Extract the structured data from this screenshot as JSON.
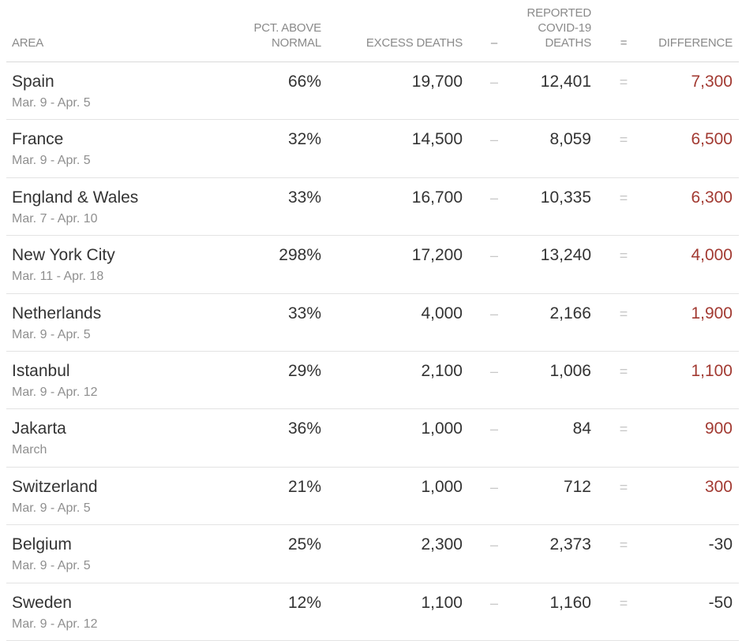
{
  "colors": {
    "positive_difference": "#a23a32",
    "negative_difference": "#333333",
    "header_text": "#8a8a8a",
    "operator": "#c8c8c8"
  },
  "chart_data": {
    "type": "table",
    "columns": [
      "AREA",
      "PCT. ABOVE\nNORMAL",
      "EXCESS DEATHS",
      "–",
      "REPORTED\nCOVID-19\nDEATHS",
      "=",
      "DIFFERENCE"
    ],
    "rows": [
      {
        "area": "Spain",
        "dates": "Mar. 9 - Apr. 5",
        "pct_above_normal": "66%",
        "excess_deaths": "19,700",
        "minus": "–",
        "reported_deaths": "12,401",
        "equals": "=",
        "difference": "7,300"
      },
      {
        "area": "France",
        "dates": "Mar. 9 - Apr. 5",
        "pct_above_normal": "32%",
        "excess_deaths": "14,500",
        "minus": "–",
        "reported_deaths": "8,059",
        "equals": "=",
        "difference": "6,500"
      },
      {
        "area": "England & Wales",
        "dates": "Mar. 7 - Apr. 10",
        "pct_above_normal": "33%",
        "excess_deaths": "16,700",
        "minus": "–",
        "reported_deaths": "10,335",
        "equals": "=",
        "difference": "6,300"
      },
      {
        "area": "New York City",
        "dates": "Mar. 11 - Apr. 18",
        "pct_above_normal": "298%",
        "excess_deaths": "17,200",
        "minus": "–",
        "reported_deaths": "13,240",
        "equals": "=",
        "difference": "4,000"
      },
      {
        "area": "Netherlands",
        "dates": "Mar. 9 - Apr. 5",
        "pct_above_normal": "33%",
        "excess_deaths": "4,000",
        "minus": "–",
        "reported_deaths": "2,166",
        "equals": "=",
        "difference": "1,900"
      },
      {
        "area": "Istanbul",
        "dates": "Mar. 9 - Apr. 12",
        "pct_above_normal": "29%",
        "excess_deaths": "2,100",
        "minus": "–",
        "reported_deaths": "1,006",
        "equals": "=",
        "difference": "1,100"
      },
      {
        "area": "Jakarta",
        "dates": "March",
        "pct_above_normal": "36%",
        "excess_deaths": "1,000",
        "minus": "–",
        "reported_deaths": "84",
        "equals": "=",
        "difference": "900"
      },
      {
        "area": "Switzerland",
        "dates": "Mar. 9 - Apr. 5",
        "pct_above_normal": "21%",
        "excess_deaths": "1,000",
        "minus": "–",
        "reported_deaths": "712",
        "equals": "=",
        "difference": "300"
      },
      {
        "area": "Belgium",
        "dates": "Mar. 9 - Apr. 5",
        "pct_above_normal": "25%",
        "excess_deaths": "2,300",
        "minus": "–",
        "reported_deaths": "2,373",
        "equals": "=",
        "difference": "-30"
      },
      {
        "area": "Sweden",
        "dates": "Mar. 9 - Apr. 12",
        "pct_above_normal": "12%",
        "excess_deaths": "1,100",
        "minus": "–",
        "reported_deaths": "1,160",
        "equals": "=",
        "difference": "-50"
      }
    ]
  }
}
